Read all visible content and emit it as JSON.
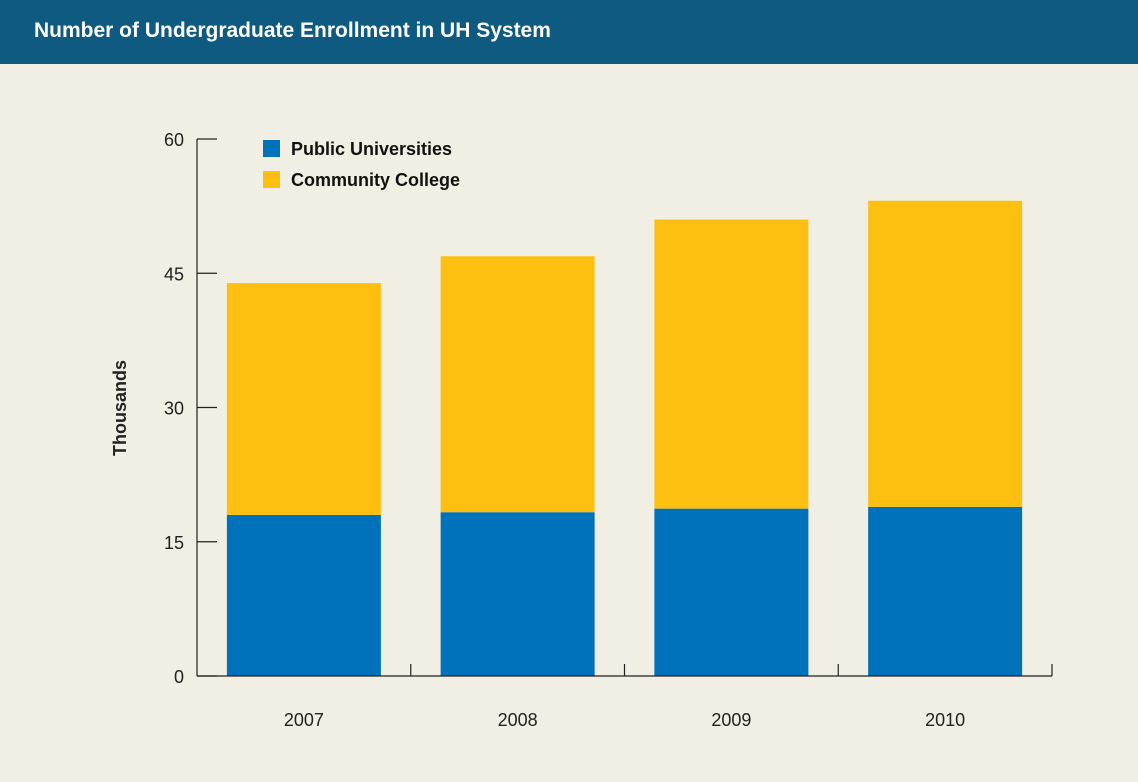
{
  "header": {
    "title": "Number of Undergraduate Enrollment in UH System"
  },
  "colors": {
    "header_bg": "#0e5a80",
    "background": "#f1efe3",
    "public": "#0072bc",
    "community": "#fdc010",
    "axis": "#222222"
  },
  "chart_data": {
    "type": "bar",
    "stacked": true,
    "title": "Number of Undergraduate Enrollment in UH System",
    "xlabel": "",
    "ylabel": "Thousands",
    "ylim": [
      0,
      60
    ],
    "yticks": [
      0,
      15,
      30,
      45,
      60
    ],
    "categories": [
      "2007",
      "2008",
      "2009",
      "2010"
    ],
    "series": [
      {
        "name": "Public Universities",
        "color": "#0072bc",
        "values": [
          18.0,
          18.3,
          18.7,
          18.9
        ]
      },
      {
        "name": "Community College",
        "color": "#fdc010",
        "values": [
          25.9,
          28.6,
          32.3,
          34.2
        ]
      }
    ],
    "legend": "top-left",
    "grid": false
  }
}
